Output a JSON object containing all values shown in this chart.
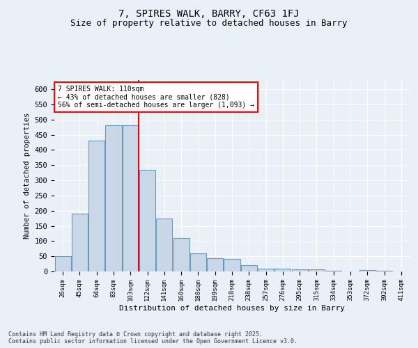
{
  "title1": "7, SPIRES WALK, BARRY, CF63 1FJ",
  "title2": "Size of property relative to detached houses in Barry",
  "xlabel": "Distribution of detached houses by size in Barry",
  "ylabel": "Number of detached properties",
  "categories": [
    "26sqm",
    "45sqm",
    "64sqm",
    "83sqm",
    "103sqm",
    "122sqm",
    "141sqm",
    "160sqm",
    "180sqm",
    "199sqm",
    "218sqm",
    "238sqm",
    "257sqm",
    "276sqm",
    "295sqm",
    "315sqm",
    "334sqm",
    "353sqm",
    "372sqm",
    "392sqm",
    "411sqm"
  ],
  "values": [
    50,
    190,
    430,
    480,
    480,
    335,
    175,
    110,
    60,
    43,
    42,
    20,
    10,
    10,
    8,
    8,
    3,
    1,
    5,
    2,
    1
  ],
  "bar_color": "#c8d8e8",
  "bar_edge_color": "#6699bb",
  "vline_x": 4.5,
  "vline_color": "red",
  "annotation_text": "7 SPIRES WALK: 110sqm\n← 43% of detached houses are smaller (828)\n56% of semi-detached houses are larger (1,093) →",
  "annotation_box_color": "white",
  "annotation_box_edge": "red",
  "ylim": [
    0,
    630
  ],
  "yticks": [
    0,
    50,
    100,
    150,
    200,
    250,
    300,
    350,
    400,
    450,
    500,
    550,
    600
  ],
  "footer": "Contains HM Land Registry data © Crown copyright and database right 2025.\nContains public sector information licensed under the Open Government Licence v3.0.",
  "bg_color": "#eaf0f8",
  "plot_bg_color": "#eaf0f8",
  "grid_color": "white",
  "title1_fontsize": 10,
  "title2_fontsize": 9
}
